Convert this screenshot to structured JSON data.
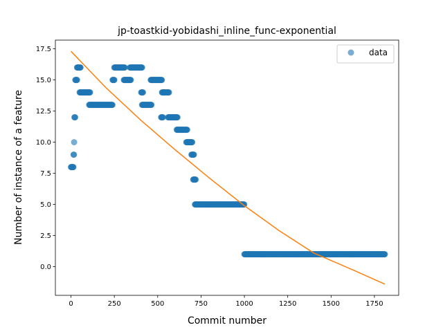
{
  "chart_data": {
    "type": "scatter",
    "title": "jp-toastkid-yobidashi_inline_func-exponential",
    "xlabel": "Commit number",
    "ylabel": "Number of instance of a feature",
    "xlim": [
      -90,
      1890
    ],
    "ylim": [
      -2.3,
      18.2
    ],
    "xticks": [
      0,
      250,
      500,
      750,
      1000,
      1250,
      1500,
      1750
    ],
    "yticks": [
      0.0,
      2.5,
      5.0,
      7.5,
      10.0,
      12.5,
      15.0,
      17.5
    ],
    "xtick_labels": [
      "0",
      "250",
      "500",
      "750",
      "1000",
      "1250",
      "1500",
      "1750"
    ],
    "ytick_labels": [
      "0.0",
      "2.5",
      "5.0",
      "7.5",
      "10.0",
      "12.5",
      "15.0",
      "17.5"
    ],
    "legend": {
      "placement": "top-right",
      "entries": [
        "data"
      ]
    },
    "colors": {
      "data": "#1f77b4",
      "fit": "#ff7f0e"
    },
    "series": [
      {
        "name": "data",
        "kind": "scatter",
        "segments": [
          {
            "x_start": 0,
            "x_end": 15,
            "y": 8
          },
          {
            "x_start": 15,
            "x_end": 17,
            "y": 9
          },
          {
            "x_start": 18,
            "x_end": 19,
            "y": 10
          },
          {
            "x_start": 20,
            "x_end": 25,
            "y": 12
          },
          {
            "x_start": 25,
            "x_end": 35,
            "y": 15
          },
          {
            "x_start": 35,
            "x_end": 55,
            "y": 16
          },
          {
            "x_start": 50,
            "x_end": 110,
            "y": 14
          },
          {
            "x_start": 105,
            "x_end": 240,
            "y": 13
          },
          {
            "x_start": 240,
            "x_end": 250,
            "y": 15
          },
          {
            "x_start": 250,
            "x_end": 310,
            "y": 16
          },
          {
            "x_start": 305,
            "x_end": 345,
            "y": 15
          },
          {
            "x_start": 340,
            "x_end": 410,
            "y": 16
          },
          {
            "x_start": 405,
            "x_end": 415,
            "y": 14
          },
          {
            "x_start": 410,
            "x_end": 465,
            "y": 13
          },
          {
            "x_start": 460,
            "x_end": 525,
            "y": 15
          },
          {
            "x_start": 520,
            "x_end": 530,
            "y": 12
          },
          {
            "x_start": 525,
            "x_end": 565,
            "y": 14
          },
          {
            "x_start": 560,
            "x_end": 615,
            "y": 12
          },
          {
            "x_start": 610,
            "x_end": 670,
            "y": 11
          },
          {
            "x_start": 665,
            "x_end": 700,
            "y": 10
          },
          {
            "x_start": 695,
            "x_end": 710,
            "y": 9
          },
          {
            "x_start": 705,
            "x_end": 720,
            "y": 7
          },
          {
            "x_start": 715,
            "x_end": 1000,
            "y": 5
          },
          {
            "x_start": 1000,
            "x_end": 1810,
            "y": 1
          }
        ]
      },
      {
        "name": "",
        "kind": "line",
        "x": [
          0,
          200,
          400,
          600,
          800,
          1000,
          1200,
          1400,
          1600,
          1810
        ],
        "y": [
          17.3,
          14.4,
          11.8,
          9.4,
          7.1,
          4.9,
          2.9,
          1.1,
          -0.1,
          -1.4
        ]
      }
    ]
  }
}
